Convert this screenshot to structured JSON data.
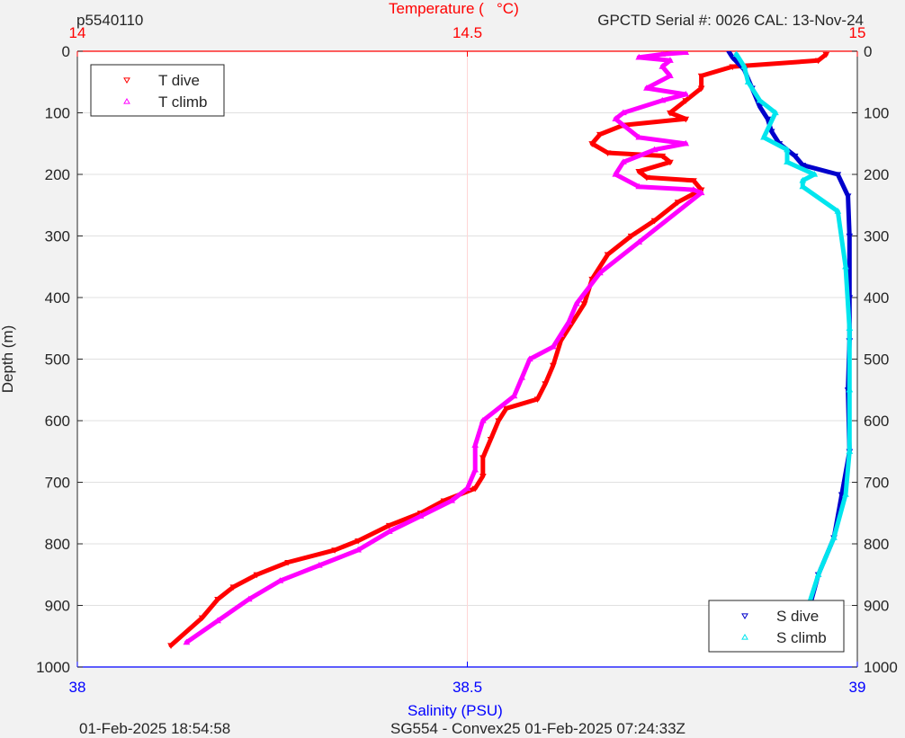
{
  "header": {
    "left_text": "p5540110",
    "right_text": "GPCTD Serial #: 0026 CAL: 13-Nov-24"
  },
  "footer": {
    "left_text": "01-Feb-2025 18:54:58",
    "center_text": "SG554 - Convex25 01-Feb-2025 07:24:33Z"
  },
  "colors": {
    "t_dive": "#ff0000",
    "t_climb": "#ff00ff",
    "s_dive": "#0000cc",
    "s_climb": "#00e5ee",
    "temp_axis": "#ff0000",
    "sal_axis": "#0000ff",
    "grid": "#e0e0e0"
  },
  "chart_data": {
    "type": "scatter",
    "title": "",
    "y_axis": {
      "label": "Depth (m)",
      "range": [
        0,
        1000
      ],
      "reversed": true,
      "ticks": [
        0,
        100,
        200,
        300,
        400,
        500,
        600,
        700,
        800,
        900,
        1000
      ],
      "tick_labels": [
        "0",
        "100",
        "200",
        "300",
        "400",
        "500",
        "600",
        "700",
        "800",
        "900",
        "1000"
      ]
    },
    "x_axis_top": {
      "label": "Temperature (   °C)",
      "range": [
        14,
        15
      ],
      "ticks": [
        14,
        14.5,
        15
      ],
      "tick_labels": [
        "14",
        "14.5",
        "15"
      ]
    },
    "x_axis_bottom": {
      "label": "Salinity (PSU)",
      "range": [
        38,
        39
      ],
      "ticks": [
        38,
        38.5,
        39
      ],
      "tick_labels": [
        "38",
        "38.5",
        "39"
      ]
    },
    "grid": true,
    "legend_top_left": [
      "T dive",
      "T climb"
    ],
    "legend_bottom_right": [
      "S dive",
      "S climb"
    ],
    "series": [
      {
        "name": "T dive",
        "axis": "temperature",
        "marker": "triangle-down",
        "x": [
          14.96,
          14.95,
          14.84,
          14.8,
          14.8,
          14.78,
          14.76,
          14.78,
          14.7,
          14.67,
          14.66,
          14.68,
          14.75,
          14.76,
          14.72,
          14.73,
          14.79,
          14.8,
          14.77,
          14.74,
          14.71,
          14.68,
          14.66,
          14.65,
          14.62,
          14.61,
          14.6,
          14.59,
          14.55,
          14.54,
          14.53,
          14.52,
          14.52,
          14.51,
          14.47,
          14.44,
          14.4,
          14.36,
          14.33,
          14.27,
          14.23,
          14.2,
          14.18,
          14.16,
          14.12
        ],
        "y": [
          5,
          15,
          25,
          40,
          60,
          80,
          100,
          110,
          120,
          135,
          150,
          165,
          170,
          180,
          195,
          205,
          210,
          225,
          245,
          275,
          300,
          330,
          370,
          410,
          470,
          510,
          540,
          565,
          580,
          600,
          630,
          660,
          690,
          710,
          730,
          750,
          770,
          795,
          810,
          830,
          850,
          870,
          890,
          920,
          965
        ]
      },
      {
        "name": "T climb",
        "axis": "temperature",
        "marker": "triangle-up",
        "x": [
          14.14,
          14.18,
          14.22,
          14.26,
          14.31,
          14.36,
          14.4,
          14.44,
          14.48,
          14.5,
          14.51,
          14.51,
          14.52,
          14.56,
          14.57,
          14.58,
          14.61,
          14.62,
          14.63,
          14.64,
          14.67,
          14.72,
          14.8,
          14.79,
          14.72,
          14.69,
          14.7,
          14.74,
          14.78,
          14.72,
          14.69,
          14.7,
          14.75,
          14.78,
          14.73,
          14.76,
          14.75,
          14.76,
          14.72,
          14.75,
          14.78
        ],
        "y": [
          960,
          925,
          890,
          860,
          835,
          810,
          780,
          755,
          730,
          710,
          680,
          640,
          600,
          560,
          530,
          500,
          480,
          460,
          440,
          410,
          360,
          310,
          230,
          225,
          220,
          200,
          180,
          160,
          150,
          140,
          110,
          100,
          80,
          70,
          60,
          40,
          25,
          15,
          10,
          5,
          2
        ]
      },
      {
        "name": "S dive",
        "axis": "salinity",
        "marker": "triangle-down",
        "x": [
          38.835,
          38.84,
          38.855,
          38.865,
          38.875,
          38.885,
          38.89,
          38.9,
          38.92,
          38.93,
          38.975,
          38.988,
          38.99,
          38.99,
          38.99,
          38.988,
          38.99,
          38.98,
          38.97,
          38.95,
          38.935,
          38.925
        ],
        "y": [
          0,
          10,
          30,
          60,
          90,
          110,
          130,
          150,
          170,
          185,
          200,
          235,
          300,
          400,
          470,
          550,
          650,
          720,
          790,
          850,
          920,
          965
        ]
      },
      {
        "name": "S climb",
        "axis": "salinity",
        "marker": "triangle-up",
        "x": [
          38.925,
          38.935,
          38.95,
          38.97,
          38.985,
          38.99,
          38.99,
          38.99,
          38.985,
          38.975,
          38.93,
          38.93,
          38.945,
          38.91,
          38.91,
          38.88,
          38.895,
          38.875,
          38.86,
          38.855,
          38.845
        ],
        "y": [
          965,
          910,
          850,
          790,
          720,
          650,
          550,
          450,
          350,
          260,
          220,
          210,
          200,
          180,
          160,
          140,
          100,
          80,
          50,
          25,
          5
        ]
      }
    ]
  }
}
